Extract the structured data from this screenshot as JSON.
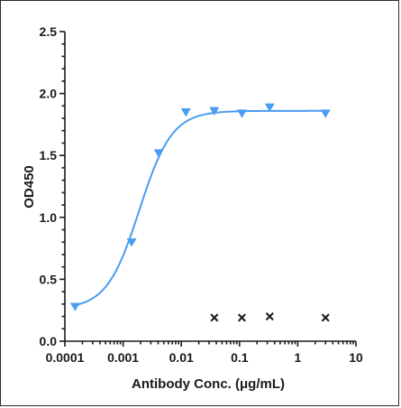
{
  "chart_data": {
    "type": "scatter",
    "xlabel": "Antibody Conc. (μg/mL)",
    "ylabel": "OD450",
    "x_scale": "log",
    "xlim": [
      0.0001,
      10
    ],
    "ylim": [
      0,
      2.5
    ],
    "x_ticks": [
      0.0001,
      0.001,
      0.01,
      0.1,
      1,
      10
    ],
    "x_tick_labels": [
      "0.0001",
      "0.001",
      "0.01",
      "0.1",
      "1",
      "10"
    ],
    "y_ticks": [
      0,
      0.5,
      1.0,
      1.5,
      2.0,
      2.5
    ],
    "y_tick_labels": [
      "0.0",
      "0.5",
      "1.0",
      "1.5",
      "2.0",
      "2.5"
    ],
    "grid": false,
    "legend": "none",
    "series": [
      {
        "marker": "triangle-down",
        "color": "#4a9cf0",
        "fit_curve": true,
        "fit_params": {
          "bottom": 0.26,
          "top": 1.86,
          "log_ec50": -2.72,
          "hill": 1.55
        },
        "points": [
          {
            "x": 0.00015,
            "y": 0.28
          },
          {
            "x": 0.0014,
            "y": 0.8
          },
          {
            "x": 0.0041,
            "y": 1.52
          },
          {
            "x": 0.012,
            "y": 1.85
          },
          {
            "x": 0.037,
            "y": 1.86
          },
          {
            "x": 0.11,
            "y": 1.84
          },
          {
            "x": 0.33,
            "y": 1.89
          },
          {
            "x": 3.0,
            "y": 1.84
          }
        ]
      },
      {
        "marker": "x",
        "color": "#1a1a1a",
        "fit_curve": false,
        "points": [
          {
            "x": 0.037,
            "y": 0.19
          },
          {
            "x": 0.11,
            "y": 0.19
          },
          {
            "x": 0.33,
            "y": 0.2
          },
          {
            "x": 3.0,
            "y": 0.19
          }
        ]
      }
    ]
  }
}
